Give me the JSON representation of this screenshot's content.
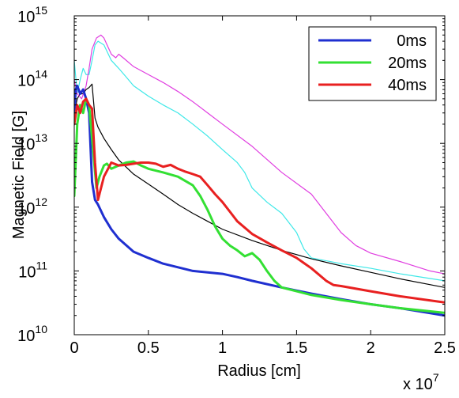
{
  "chart_data": {
    "type": "line",
    "title": "",
    "xlabel": "Radius [cm]",
    "ylabel": "Magnetic Field [G]",
    "x_multiplier": "x 10",
    "x_multiplier_exponent": "7",
    "xlim": [
      0,
      2.5
    ],
    "ylim": [
      10000000000.0,
      1000000000000000.0
    ],
    "yscale": "log",
    "grid": false,
    "legend_position": "top-right",
    "x_ticks": [
      0,
      0.5,
      1,
      1.5,
      2,
      2.5
    ],
    "x_tick_labels": [
      "0",
      "0.5",
      "1",
      "1.5",
      "2",
      "2.5"
    ],
    "y_ticks": [
      10000000000.0,
      100000000000.0,
      1000000000000.0,
      10000000000000.0,
      100000000000000.0,
      1000000000000000.0
    ],
    "y_tick_bases": [
      "10",
      "10",
      "10",
      "10",
      "10",
      "10"
    ],
    "y_tick_exponents": [
      "10",
      "11",
      "12",
      "13",
      "14",
      "15"
    ],
    "series": [
      {
        "name": "0ms",
        "color": "#1f2fd0",
        "in_legend": true,
        "width": 3,
        "x": [
          0,
          0.01,
          0.02,
          0.04,
          0.06,
          0.08,
          0.1,
          0.12,
          0.14,
          0.16,
          0.2,
          0.25,
          0.3,
          0.4,
          0.5,
          0.6,
          0.8,
          1.0,
          1.1,
          1.2,
          1.4,
          1.6,
          1.8,
          2.0,
          2.2,
          2.5
        ],
        "y": [
          30000000000000.0,
          70000000000000.0,
          80000000000000.0,
          60000000000000.0,
          70000000000000.0,
          50000000000000.0,
          30000000000000.0,
          2500000000000.0,
          1300000000000.0,
          1100000000000.0,
          700000000000.0,
          450000000000.0,
          320000000000.0,
          200000000000.0,
          160000000000.0,
          130000000000.0,
          100000000000.0,
          90000000000.0,
          80000000000.0,
          70000000000.0,
          55000000000.0,
          44000000000.0,
          36000000000.0,
          30000000000.0,
          26000000000.0,
          20000000000.0
        ]
      },
      {
        "name": "20ms",
        "color": "#33e033",
        "in_legend": true,
        "width": 3,
        "x": [
          0,
          0.02,
          0.04,
          0.06,
          0.08,
          0.1,
          0.12,
          0.15,
          0.17,
          0.2,
          0.22,
          0.25,
          0.3,
          0.35,
          0.4,
          0.45,
          0.5,
          0.6,
          0.7,
          0.8,
          0.85,
          0.9,
          0.95,
          1.0,
          1.05,
          1.1,
          1.15,
          1.2,
          1.25,
          1.3,
          1.35,
          1.4,
          1.5,
          1.6,
          1.8,
          2.0,
          2.2,
          2.5
        ],
        "y": [
          1500000000000.0,
          20000000000000.0,
          40000000000000.0,
          30000000000000.0,
          50000000000000.0,
          40000000000000.0,
          12000000000000.0,
          2000000000000.0,
          3000000000000.0,
          4500000000000.0,
          4800000000000.0,
          4000000000000.0,
          4500000000000.0,
          5000000000000.0,
          5200000000000.0,
          4500000000000.0,
          4000000000000.0,
          3500000000000.0,
          3000000000000.0,
          2200000000000.0,
          1500000000000.0,
          900000000000.0,
          500000000000.0,
          320000000000.0,
          250000000000.0,
          210000000000.0,
          170000000000.0,
          190000000000.0,
          150000000000.0,
          100000000000.0,
          70000000000.0,
          55000000000.0,
          48000000000.0,
          42000000000.0,
          35000000000.0,
          30000000000.0,
          26000000000.0,
          22000000000.0
        ]
      },
      {
        "name": "40ms",
        "color": "#e82020",
        "in_legend": true,
        "width": 3,
        "x": [
          0,
          0.02,
          0.04,
          0.06,
          0.08,
          0.1,
          0.12,
          0.14,
          0.16,
          0.2,
          0.25,
          0.3,
          0.35,
          0.4,
          0.45,
          0.5,
          0.55,
          0.6,
          0.65,
          0.7,
          0.75,
          0.8,
          0.85,
          0.9,
          0.95,
          1.0,
          1.05,
          1.1,
          1.2,
          1.3,
          1.4,
          1.5,
          1.6,
          1.7,
          1.75,
          1.8,
          2.0,
          2.2,
          2.5
        ],
        "y": [
          20000000000000.0,
          40000000000000.0,
          30000000000000.0,
          45000000000000.0,
          50000000000000.0,
          40000000000000.0,
          35000000000000.0,
          5000000000000.0,
          1300000000000.0,
          3000000000000.0,
          5000000000000.0,
          4500000000000.0,
          4600000000000.0,
          4800000000000.0,
          5000000000000.0,
          5000000000000.0,
          4800000000000.0,
          4300000000000.0,
          4600000000000.0,
          4000000000000.0,
          3600000000000.0,
          3300000000000.0,
          3000000000000.0,
          2200000000000.0,
          1600000000000.0,
          1200000000000.0,
          850000000000.0,
          600000000000.0,
          380000000000.0,
          280000000000.0,
          210000000000.0,
          160000000000.0,
          110000000000.0,
          70000000000.0,
          60000000000.0,
          58000000000.0,
          48000000000.0,
          40000000000.0,
          32000000000.0
        ]
      },
      {
        "name": "",
        "color": "#000000",
        "in_legend": false,
        "width": 1.2,
        "x": [
          0,
          0.02,
          0.04,
          0.06,
          0.08,
          0.1,
          0.12,
          0.14,
          0.16,
          0.2,
          0.25,
          0.3,
          0.4,
          0.5,
          0.6,
          0.7,
          0.8,
          0.9,
          1.0,
          1.2,
          1.4,
          1.6,
          1.8,
          2.0,
          2.2,
          2.5
        ],
        "y": [
          30000000000000.0,
          50000000000000.0,
          60000000000000.0,
          60000000000000.0,
          70000000000000.0,
          75000000000000.0,
          85000000000000.0,
          25000000000000.0,
          18000000000000.0,
          12000000000000.0,
          8000000000000.0,
          5500000000000.0,
          3300000000000.0,
          2300000000000.0,
          1600000000000.0,
          1100000000000.0,
          800000000000.0,
          600000000000.0,
          450000000000.0,
          300000000000.0,
          210000000000.0,
          155000000000.0,
          120000000000.0,
          95000000000.0,
          75000000000.0,
          55000000000.0
        ]
      },
      {
        "name": "",
        "color": "#3ee8e8",
        "in_legend": false,
        "width": 1.2,
        "x": [
          0,
          0.02,
          0.04,
          0.06,
          0.08,
          0.1,
          0.12,
          0.14,
          0.16,
          0.2,
          0.25,
          0.3,
          0.35,
          0.4,
          0.5,
          0.6,
          0.7,
          0.8,
          0.9,
          1.0,
          1.1,
          1.15,
          1.2,
          1.3,
          1.4,
          1.5,
          1.55,
          1.6,
          1.8,
          2.0,
          2.2,
          2.5
        ],
        "y": [
          200000000000000.0,
          60000000000000.0,
          100000000000000.0,
          150000000000000.0,
          120000000000000.0,
          120000000000000.0,
          200000000000000.0,
          350000000000000.0,
          400000000000000.0,
          350000000000000.0,
          200000000000000.0,
          150000000000000.0,
          110000000000000.0,
          80000000000000.0,
          55000000000000.0,
          40000000000000.0,
          30000000000000.0,
          20000000000000.0,
          13000000000000.0,
          8000000000000.0,
          5000000000000.0,
          3500000000000.0,
          2000000000000.0,
          1200000000000.0,
          800000000000.0,
          400000000000.0,
          220000000000.0,
          160000000000.0,
          130000000000.0,
          110000000000.0,
          90000000000.0,
          70000000000.0
        ]
      },
      {
        "name": "",
        "color": "#e03ee0",
        "in_legend": false,
        "width": 1.2,
        "x": [
          0,
          0.02,
          0.05,
          0.08,
          0.1,
          0.12,
          0.15,
          0.18,
          0.2,
          0.25,
          0.28,
          0.3,
          0.33,
          0.4,
          0.5,
          0.6,
          0.7,
          0.8,
          0.9,
          1.0,
          1.2,
          1.4,
          1.6,
          1.7,
          1.8,
          1.9,
          2.0,
          2.2,
          2.4,
          2.5
        ],
        "y": [
          100000000000000.0,
          60000000000000.0,
          50000000000000.0,
          80000000000000.0,
          150000000000000.0,
          300000000000000.0,
          450000000000000.0,
          500000000000000.0,
          450000000000000.0,
          250000000000000.0,
          220000000000000.0,
          250000000000000.0,
          220000000000000.0,
          160000000000000.0,
          120000000000000.0,
          90000000000000.0,
          65000000000000.0,
          45000000000000.0,
          30000000000000.0,
          20000000000000.0,
          9000000000000.0,
          3500000000000.0,
          1600000000000.0,
          800000000000.0,
          400000000000.0,
          250000000000.0,
          190000000000.0,
          140000000000.0,
          100000000000.0,
          90000000000.0
        ]
      }
    ]
  }
}
